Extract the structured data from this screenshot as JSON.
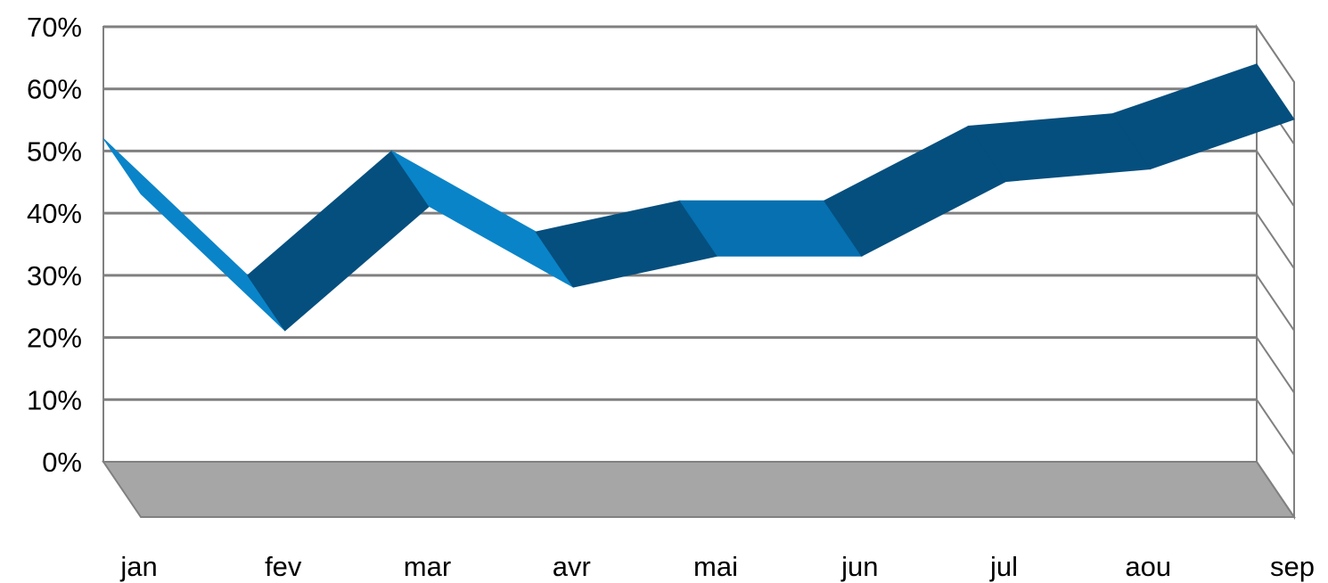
{
  "chart_data": {
    "type": "line",
    "style": "3d-ribbon",
    "categories": [
      "jan",
      "fev",
      "mar",
      "avr",
      "mai",
      "jun",
      "jul",
      "aou",
      "sep"
    ],
    "series": [
      {
        "values": [
          0.52,
          0.3,
          0.5,
          0.37,
          0.42,
          0.42,
          0.54,
          0.56,
          0.64
        ]
      }
    ],
    "ylim": [
      0,
      0.7
    ],
    "yticks": [
      "0%",
      "10%",
      "20%",
      "30%",
      "40%",
      "50%",
      "60%",
      "70%"
    ],
    "grid": true,
    "legend": "none",
    "colors": {
      "front": "#0a84c8",
      "top": "#054f7e",
      "floor": "#a6a6a6",
      "gridline": "#808080"
    }
  }
}
